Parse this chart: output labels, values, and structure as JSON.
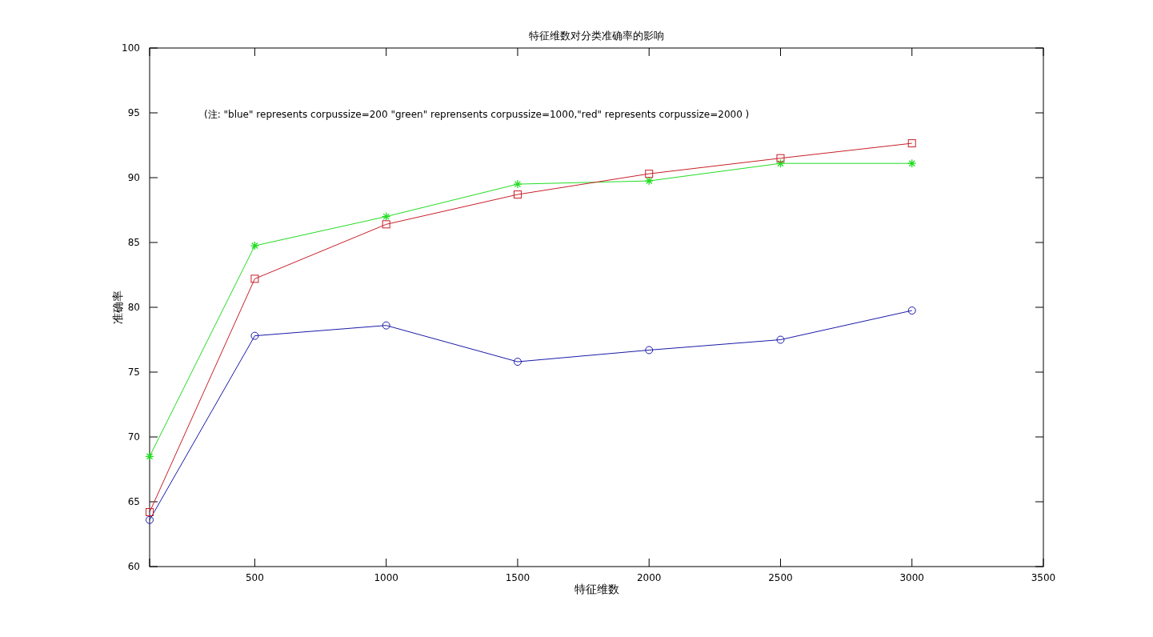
{
  "chart_data": {
    "type": "line",
    "title": "特征维数对分类准确率的影响",
    "xlabel": "特征维数",
    "ylabel": "准确率",
    "annotations": [
      "(注: \"blue\" represents corpussize=200 \"green\" reprensents corpussize=1000,\"red\" represents corpussize=2000 )"
    ],
    "x": [
      100,
      500,
      1000,
      1500,
      2000,
      2500,
      3000
    ],
    "series": [
      {
        "color": "#1a1aa8",
        "marker": "circle",
        "values": [
          63.6,
          77.8,
          78.6,
          75.8,
          76.7,
          77.5,
          79.75
        ]
      },
      {
        "color": "#22dd22",
        "marker": "cross",
        "values": [
          68.5,
          84.75,
          87.0,
          89.5,
          89.75,
          91.1,
          91.1
        ]
      },
      {
        "color": "#c81e28",
        "marker": "square",
        "values": [
          64.2,
          82.2,
          86.4,
          88.7,
          90.3,
          91.5,
          92.65
        ]
      }
    ],
    "xlim": [
      100,
      3500
    ],
    "xticks": [
      {
        "value": 100,
        "label": null
      },
      500,
      1000,
      1500,
      2000,
      2500,
      3000,
      3500
    ],
    "ylim": [
      60,
      100
    ],
    "yticks": [
      60,
      65,
      70,
      75,
      80,
      85,
      90,
      95,
      100
    ],
    "grid": false,
    "line_style": "solid"
  }
}
